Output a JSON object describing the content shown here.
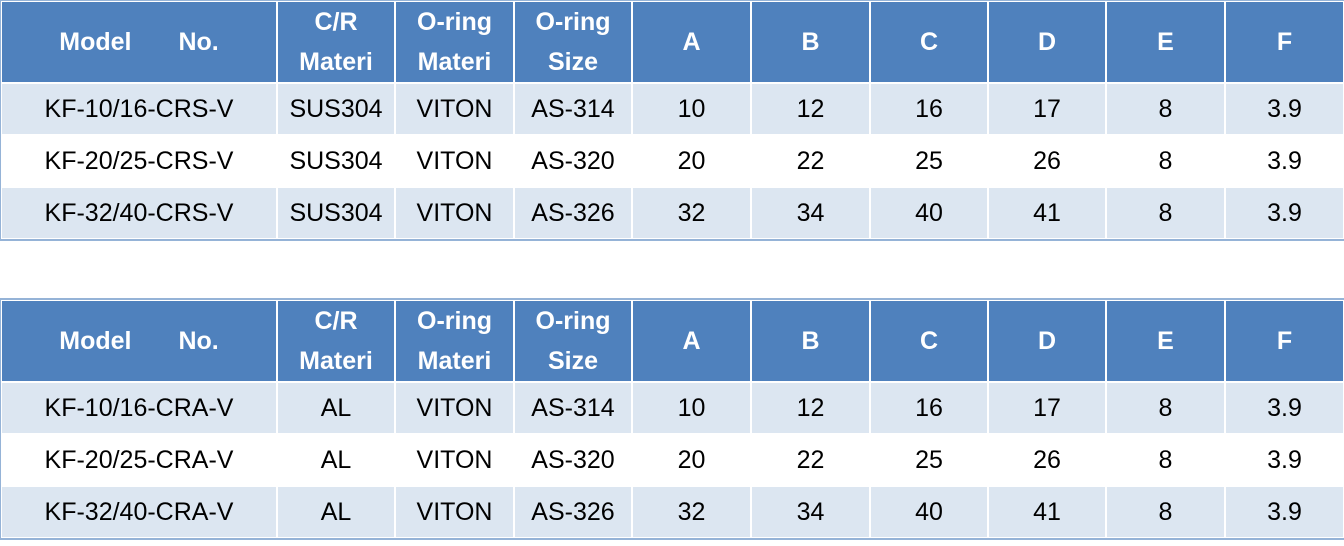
{
  "tables": [
    {
      "header": [
        "Model No.",
        "C/R Materi",
        "O-ring Materi",
        "O-ring Size",
        "A",
        "B",
        "C",
        "D",
        "E",
        "F"
      ],
      "rows": [
        [
          "KF-10/16-CRS-V",
          "SUS304",
          "VITON",
          "AS-314",
          10,
          12,
          16,
          17,
          8,
          3.9
        ],
        [
          "KF-20/25-CRS-V",
          "SUS304",
          "VITON",
          "AS-320",
          20,
          22,
          25,
          26,
          8,
          3.9
        ],
        [
          "KF-32/40-CRS-V",
          "SUS304",
          "VITON",
          "AS-326",
          32,
          34,
          40,
          41,
          8,
          3.9
        ]
      ]
    },
    {
      "header": [
        "Model No.",
        "C/R Materi",
        "O-ring Materi",
        "O-ring Size",
        "A",
        "B",
        "C",
        "D",
        "E",
        "F"
      ],
      "rows": [
        [
          "KF-10/16-CRA-V",
          "AL",
          "VITON",
          "AS-314",
          10,
          12,
          16,
          17,
          8,
          3.9
        ],
        [
          "KF-20/25-CRA-V",
          "AL",
          "VITON",
          "AS-320",
          20,
          22,
          25,
          26,
          8,
          3.9
        ],
        [
          "KF-32/40-CRA-V",
          "AL",
          "VITON",
          "AS-326",
          32,
          34,
          40,
          41,
          8,
          3.9
        ]
      ]
    }
  ]
}
